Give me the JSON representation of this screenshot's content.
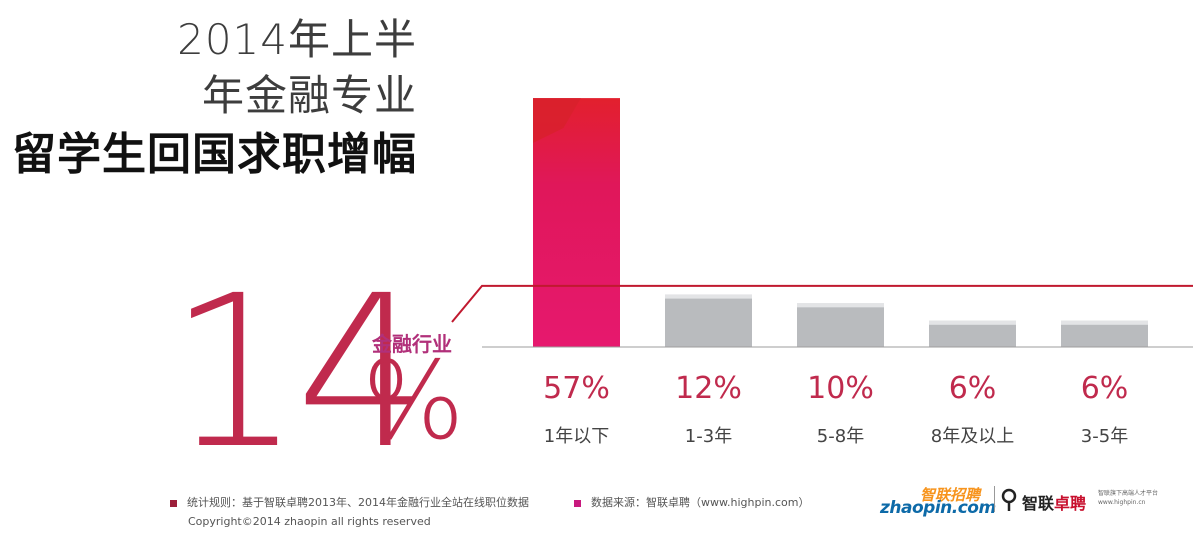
{
  "title": {
    "line1": "2014年上半",
    "line2": "年金融专业",
    "line3": "留学生回国求职增幅"
  },
  "highlight": {
    "number": "14",
    "percent_sign": "%",
    "value": 14,
    "label": "金融行业"
  },
  "colors": {
    "accent_red": "#c02a4d",
    "accent_magenta": "#b1307a",
    "highlight_bar": "#e0175a",
    "gray_bar": "#b9bbbe",
    "baseline": "#c0192f"
  },
  "chart_data": {
    "type": "bar",
    "categories": [
      "1年以下",
      "1-3年",
      "5-8年",
      "8年及以上",
      "3-5年"
    ],
    "values": [
      57,
      12,
      10,
      6,
      6
    ],
    "value_labels": [
      "57%",
      "12%",
      "10%",
      "6%",
      "6%"
    ],
    "highlight_index": 0,
    "ylim": [
      0,
      60
    ],
    "grid": false
  },
  "legend": {
    "rule": "统计规则：基于智联卓聘2013年、2014年金融行业全站在线职位数据",
    "source": "数据来源：智联卓聘（www.highpin.com）"
  },
  "copyright": "Copyright©2014 zhaopin all rights reserved",
  "logos": {
    "zhaopin_cn": "智联招聘",
    "zhaopin_en": "zhaopin.com",
    "highpin_name_a": "智联",
    "highpin_name_b": "卓聘",
    "highpin_tagline_1": "智联旗下高端人才平台",
    "highpin_tagline_2": "www.highpin.cn"
  }
}
